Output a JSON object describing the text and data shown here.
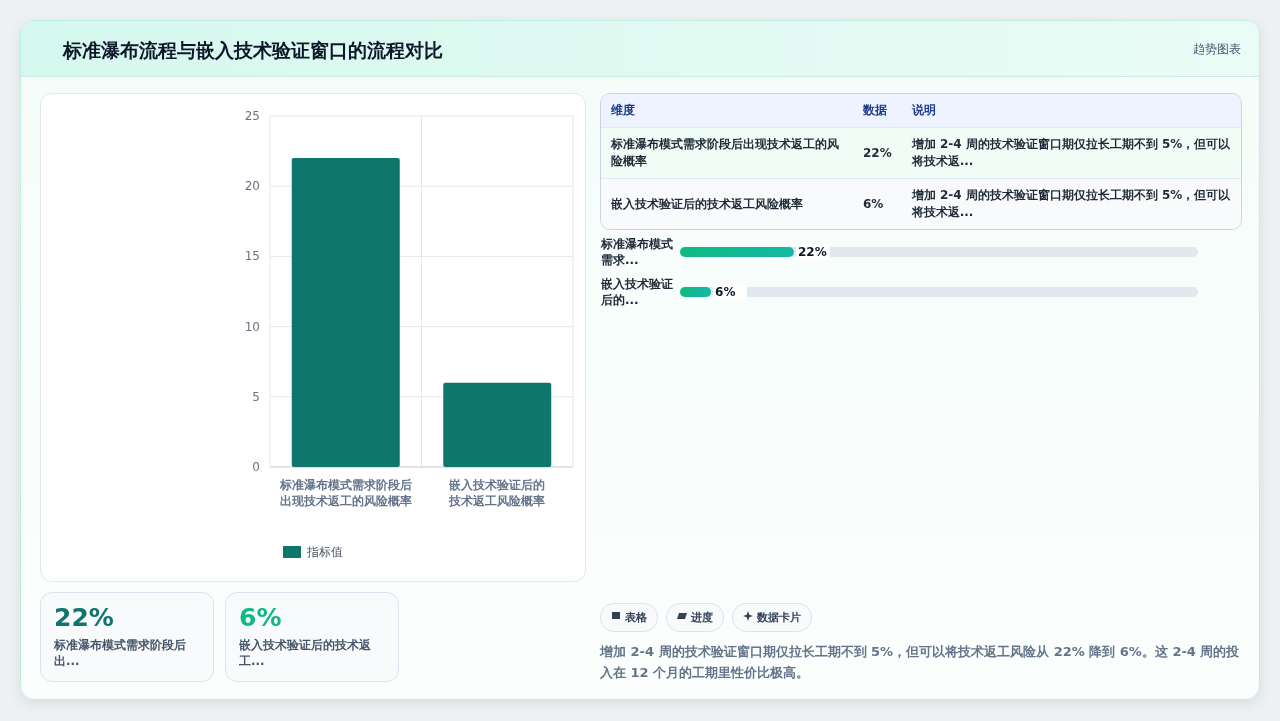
{
  "chart_data": [
    {
      "type": "bar",
      "title": "标准瀑布流程与嵌入技术验证窗口的流程对比",
      "annotations": [
        "趋势图表"
      ],
      "categories": [
        "标准瀑布模式需求阶段后出现技术返工的风险概率",
        "嵌入技术验证后的技术返工风险概率"
      ],
      "series": [
        {
          "name": "指标值",
          "color": "#0f766e",
          "values": [
            22,
            6
          ]
        }
      ],
      "ylim": [
        0,
        25
      ],
      "yticks": [
        0,
        5,
        10,
        15,
        20,
        25
      ],
      "grid": true,
      "legend": "bottom"
    },
    {
      "type": "other",
      "categories": [
        "标准瀑布模式需求阶段后出现技术返工的风险概率",
        "嵌入技术验证后的技术返工风险概率"
      ],
      "value_labels": [
        "22%",
        "6%"
      ],
      "annotations": [
        "维度",
        "数据",
        "说明",
        "增加 2-4 周的技术验证窗口期仅拉长工期不到 5%，但可以将技术返...",
        "增加 2-4 周的技术验证窗口期仅拉长工期不到 5%，但可以将技术返..."
      ]
    },
    {
      "type": "bar",
      "orientation": "horizontal",
      "categories": [
        "标准瀑布模式需求...",
        "嵌入技术验证后的..."
      ],
      "values": [
        22,
        6
      ],
      "color": "#14b8a6",
      "value_labels": [
        "22%",
        "6%"
      ],
      "xlim": [
        0,
        100
      ],
      "tick_labels": "y"
    },
    {
      "type": "other",
      "categories": [
        "标准瀑布模式需求阶段后出...",
        "嵌入技术验证后的技术返工..."
      ],
      "value_labels": [
        "22%",
        "6%"
      ],
      "annotations": [
        "表格",
        "进度",
        "数据卡片",
        "增加 2-4 周的技术验证窗口期仅拉长工期不到 5%，但可以将技术返工风险从 22% 降到 6%。这 2-4 周的投入在 12 个月的工期里性价比极高。"
      ]
    }
  ]
}
